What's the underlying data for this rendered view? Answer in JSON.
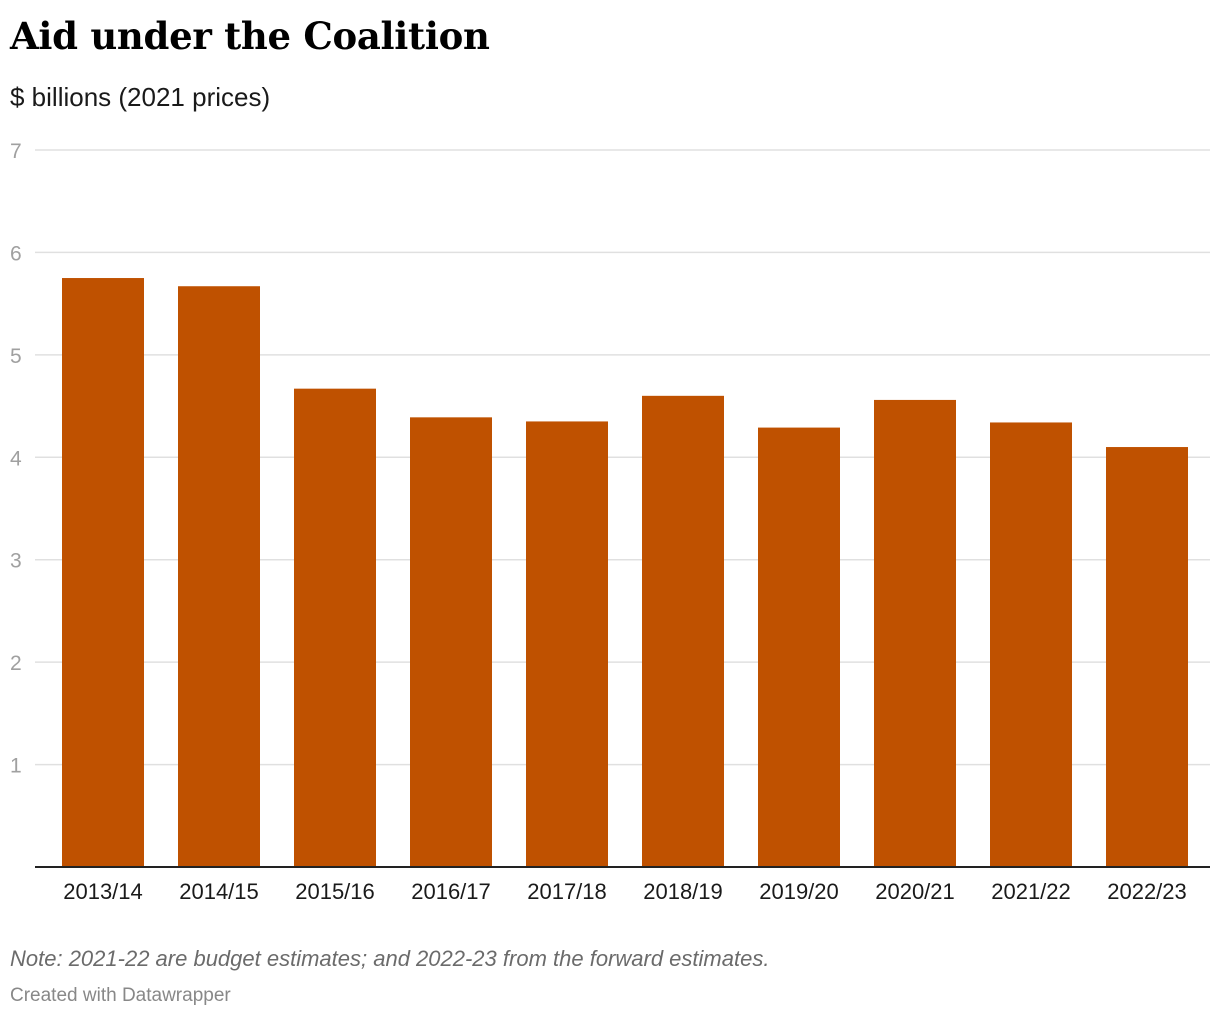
{
  "header": {
    "title": "Aid under the Coalition",
    "subtitle": "$ billions (2021 prices)"
  },
  "footer": {
    "note": "Note: 2021-22 are budget estimates; and 2022-23 from the forward estimates.",
    "credit": "Created with Datawrapper"
  },
  "colors": {
    "bar": "#bf5100",
    "grid": "#e0e0e0",
    "axis": "#222222"
  },
  "chart_data": {
    "type": "bar",
    "title": "Aid under the Coalition",
    "subtitle": "$ billions (2021 prices)",
    "xlabel": "",
    "ylabel": "",
    "ylim": [
      0,
      7
    ],
    "yticks": [
      1,
      2,
      3,
      4,
      5,
      6,
      7
    ],
    "grid": true,
    "legend": "none",
    "categories": [
      "2013/14",
      "2014/15",
      "2015/16",
      "2016/17",
      "2017/18",
      "2018/19",
      "2019/20",
      "2020/21",
      "2021/22",
      "2022/23"
    ],
    "values": [
      5.75,
      5.67,
      4.67,
      4.39,
      4.35,
      4.6,
      4.29,
      4.56,
      4.34,
      4.1
    ]
  }
}
